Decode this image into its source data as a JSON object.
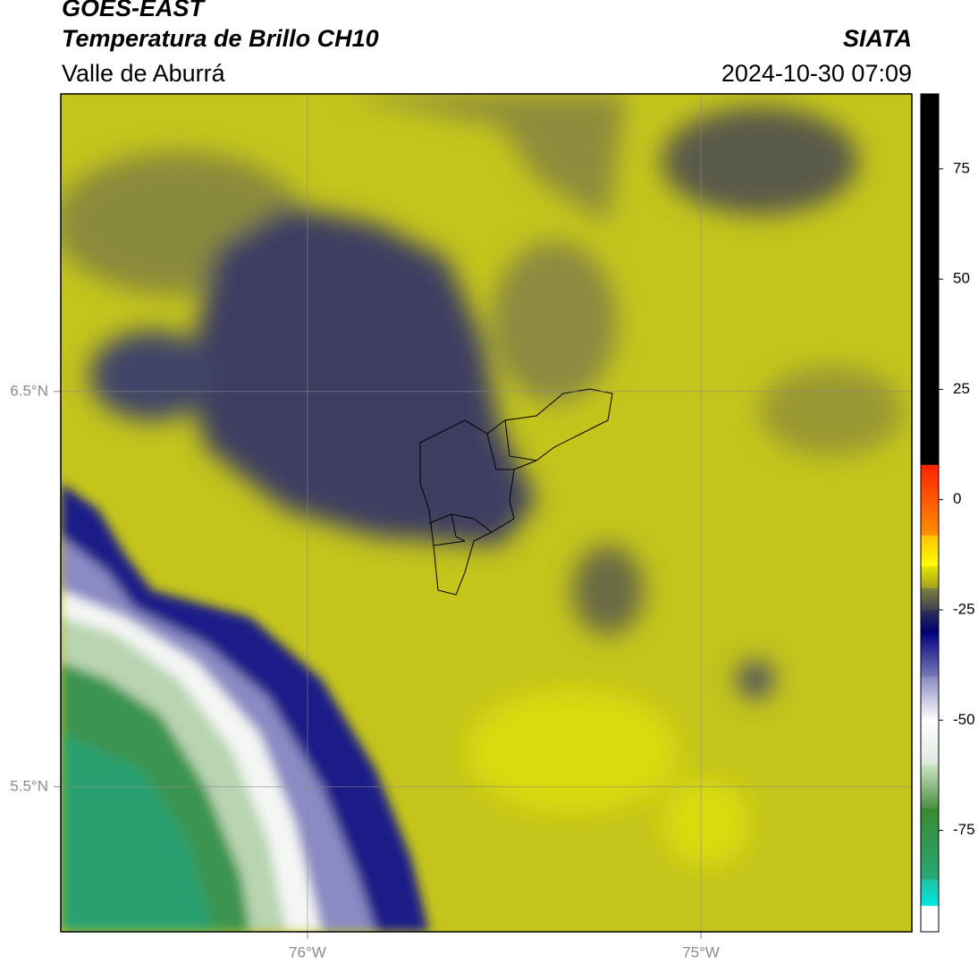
{
  "header": {
    "title": "GOES-EAST",
    "subtitle": "Temperatura de Brillo CH10",
    "region": "Valle de Aburrá",
    "source": "SIATA",
    "datetime": "2024-10-30 07:09"
  },
  "map": {
    "lon_extent": [
      -76.627,
      -74.464
    ],
    "lat_extent": [
      5.133,
      7.253
    ],
    "lat_lines": [
      {
        "value": 6.5,
        "label": "6.5°N"
      },
      {
        "value": 5.5,
        "label": "5.5°N"
      }
    ],
    "lon_lines": [
      {
        "value": -76,
        "label": "76°W"
      },
      {
        "value": -75,
        "label": "75°W"
      }
    ],
    "grid_color": "#8a8a8a"
  },
  "colorbar": {
    "lim": [
      -98,
      92
    ],
    "ticks": [
      75,
      50,
      25,
      0,
      -25,
      -50,
      -75
    ],
    "segments": [
      {
        "from": -98,
        "to": -92,
        "colors": [
          "#ffffff",
          "#ffffff"
        ]
      },
      {
        "from": -92,
        "to": -86,
        "colors": [
          "#00e8e0",
          "#20c0a0"
        ]
      },
      {
        "from": -86,
        "to": -70,
        "colors": [
          "#28a878",
          "#3a8a30"
        ]
      },
      {
        "from": -70,
        "to": -60,
        "colors": [
          "#4a9040",
          "#d0e4c8"
        ]
      },
      {
        "from": -60,
        "to": -50,
        "colors": [
          "#e0e8e0",
          "#ffffff"
        ]
      },
      {
        "from": -50,
        "to": -40,
        "colors": [
          "#ffffff",
          "#8a8ac4"
        ]
      },
      {
        "from": -40,
        "to": -30,
        "colors": [
          "#7878b8",
          "#000080"
        ]
      },
      {
        "from": -30,
        "to": -25,
        "colors": [
          "#000070",
          "#303058"
        ]
      },
      {
        "from": -25,
        "to": -20,
        "colors": [
          "#404050",
          "#808040"
        ]
      },
      {
        "from": -20,
        "to": -15,
        "colors": [
          "#a0a020",
          "#e8e800"
        ]
      },
      {
        "from": -15,
        "to": -8,
        "colors": [
          "#ffff00",
          "#ffc000"
        ]
      },
      {
        "from": -8,
        "to": 8,
        "colors": [
          "#ff9000",
          "#ff2000"
        ]
      },
      {
        "from": 8,
        "to": 92,
        "colors": [
          "#000000",
          "#000000"
        ]
      }
    ]
  }
}
